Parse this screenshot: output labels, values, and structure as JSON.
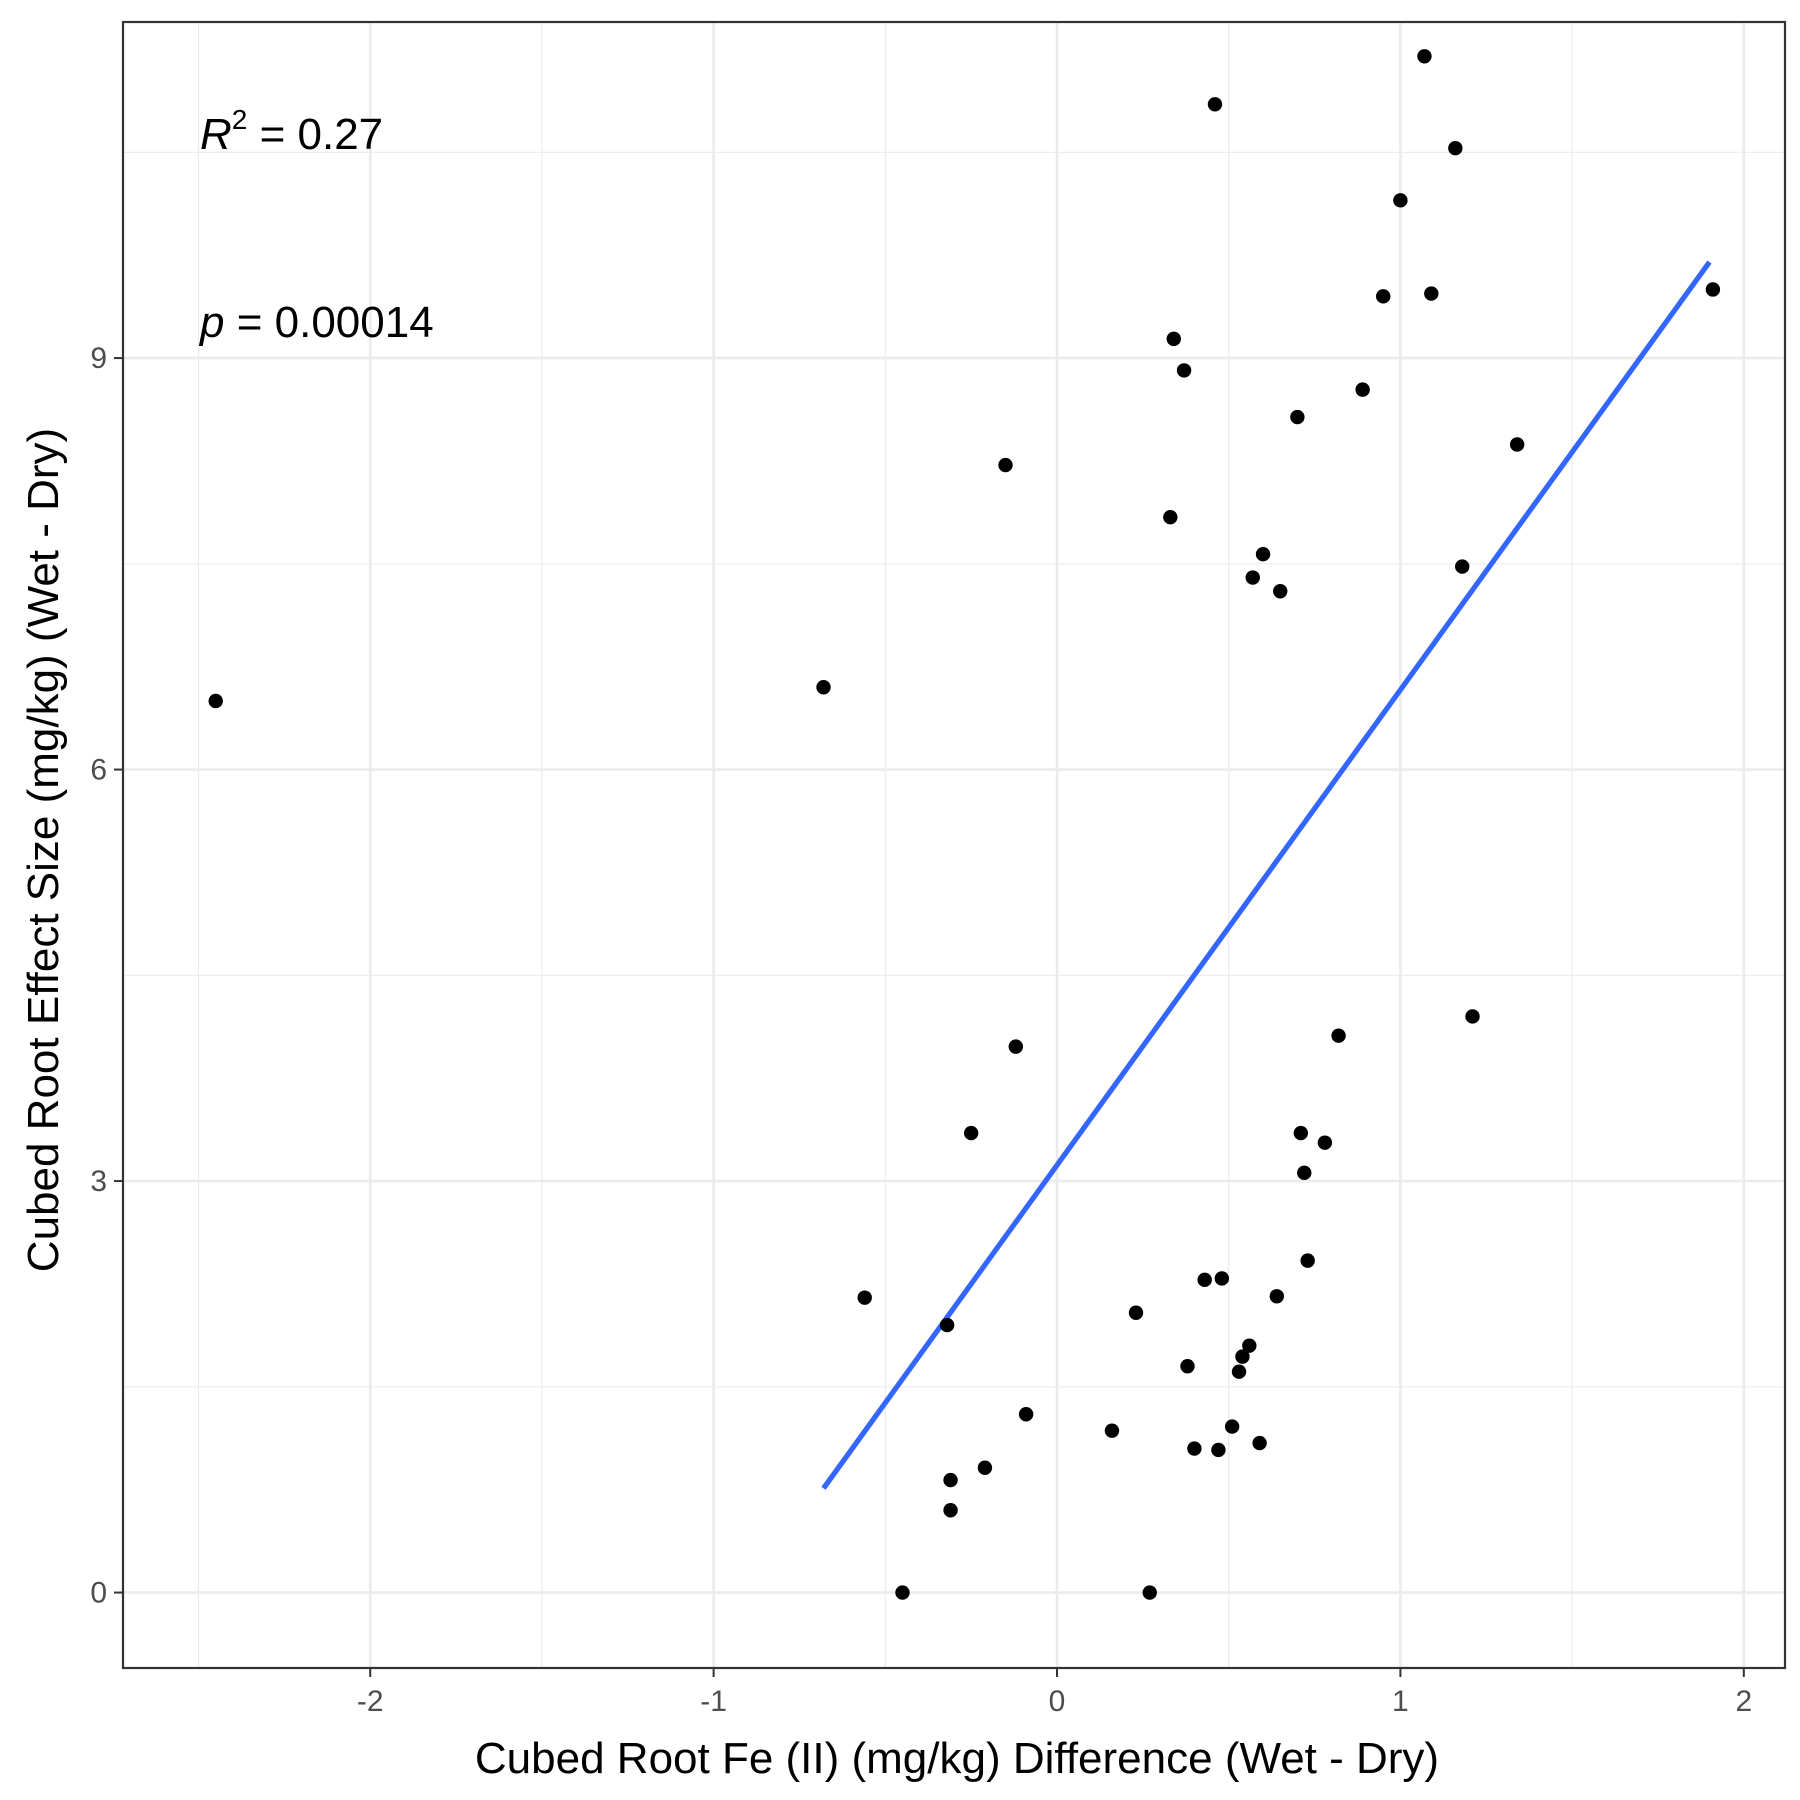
{
  "chart_data": {
    "type": "scatter",
    "xlabel": "Cubed Root Fe (II) (mg/kg) Difference (Wet - Dry)",
    "ylabel": "Cubed Root Effect Size (mg/kg) (Wet - Dry)",
    "xlim": [
      -2.72,
      2.12
    ],
    "ylim": [
      -0.55,
      11.45
    ],
    "x_ticks": [
      -2,
      -1,
      0,
      1,
      2
    ],
    "x_tick_labels": [
      "-2",
      "-1",
      "0",
      "1",
      "2"
    ],
    "y_ticks": [
      0,
      3,
      6,
      9
    ],
    "y_tick_labels": [
      "0",
      "3",
      "6",
      "9"
    ],
    "x_minor_grid": [
      -2.5,
      -1.5,
      -0.5,
      0.5,
      1.5
    ],
    "y_minor_grid": [
      1.5,
      4.5,
      7.5,
      10.5
    ],
    "grid": true,
    "colors": {
      "points": "#000000",
      "fit_line": "#3366FF",
      "grid": "#ebebeb",
      "panel_border": "#333333"
    },
    "annotations": {
      "r2": {
        "symbol": "R",
        "superscript": "2",
        "text": " = 0.27"
      },
      "p": {
        "symbol": "p",
        "text": " = 0.00014"
      }
    },
    "fit_line": {
      "x": [
        -0.68,
        1.9
      ],
      "y": [
        0.76,
        9.7
      ]
    },
    "points": [
      {
        "x": -2.45,
        "y": 6.5
      },
      {
        "x": -0.68,
        "y": 6.6
      },
      {
        "x": -0.56,
        "y": 2.15
      },
      {
        "x": -0.45,
        "y": 0.0
      },
      {
        "x": -0.32,
        "y": 1.95
      },
      {
        "x": -0.31,
        "y": 0.82
      },
      {
        "x": -0.31,
        "y": 0.6
      },
      {
        "x": -0.25,
        "y": 3.35
      },
      {
        "x": -0.21,
        "y": 0.91
      },
      {
        "x": -0.15,
        "y": 8.22
      },
      {
        "x": -0.12,
        "y": 3.98
      },
      {
        "x": -0.09,
        "y": 1.3
      },
      {
        "x": 0.16,
        "y": 1.18
      },
      {
        "x": 0.23,
        "y": 2.04
      },
      {
        "x": 0.27,
        "y": 0.0
      },
      {
        "x": 0.33,
        "y": 7.84
      },
      {
        "x": 0.34,
        "y": 9.14
      },
      {
        "x": 0.37,
        "y": 8.91
      },
      {
        "x": 0.38,
        "y": 1.65
      },
      {
        "x": 0.4,
        "y": 1.05
      },
      {
        "x": 0.43,
        "y": 2.28
      },
      {
        "x": 0.46,
        "y": 10.85
      },
      {
        "x": 0.47,
        "y": 1.04
      },
      {
        "x": 0.48,
        "y": 2.29
      },
      {
        "x": 0.51,
        "y": 1.21
      },
      {
        "x": 0.53,
        "y": 1.61
      },
      {
        "x": 0.54,
        "y": 1.72
      },
      {
        "x": 0.56,
        "y": 1.8
      },
      {
        "x": 0.57,
        "y": 7.4
      },
      {
        "x": 0.59,
        "y": 1.09
      },
      {
        "x": 0.6,
        "y": 7.57
      },
      {
        "x": 0.64,
        "y": 2.16
      },
      {
        "x": 0.65,
        "y": 7.3
      },
      {
        "x": 0.7,
        "y": 8.57
      },
      {
        "x": 0.71,
        "y": 3.35
      },
      {
        "x": 0.72,
        "y": 3.06
      },
      {
        "x": 0.73,
        "y": 2.42
      },
      {
        "x": 0.78,
        "y": 3.28
      },
      {
        "x": 0.82,
        "y": 4.06
      },
      {
        "x": 0.89,
        "y": 8.77
      },
      {
        "x": 0.95,
        "y": 9.45
      },
      {
        "x": 1.0,
        "y": 10.15
      },
      {
        "x": 1.07,
        "y": 11.2
      },
      {
        "x": 1.09,
        "y": 9.47
      },
      {
        "x": 1.16,
        "y": 10.53
      },
      {
        "x": 1.18,
        "y": 7.48
      },
      {
        "x": 1.21,
        "y": 4.2
      },
      {
        "x": 1.34,
        "y": 8.37
      },
      {
        "x": 1.91,
        "y": 9.5
      }
    ]
  }
}
